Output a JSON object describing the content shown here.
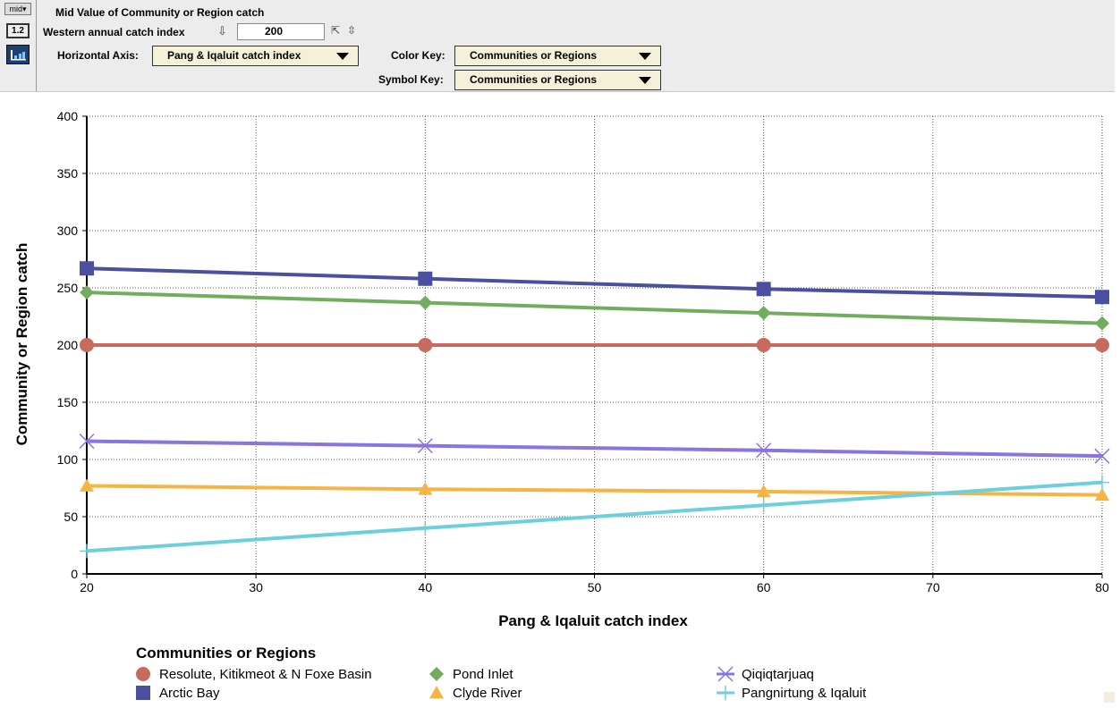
{
  "toolbar": {
    "mid_label": "mid",
    "num_label": "1.2",
    "title": "Mid Value of Community or Region catch",
    "slider_label": "Western annual catch index",
    "slider_value": "200",
    "horizontal_axis_label": "Horizontal Axis:",
    "horizontal_axis_value": "Pang & Iqaluit catch index",
    "color_key_label": "Color Key:",
    "color_key_value": "Communities or Regions",
    "symbol_key_label": "Symbol Key:",
    "symbol_key_value": "Communities or Regions"
  },
  "chart_data": {
    "type": "line",
    "xlabel": "Pang & Iqaluit catch index",
    "ylabel": "Community or Region catch",
    "xlim": [
      20,
      80
    ],
    "ylim": [
      0,
      400
    ],
    "x_ticks": [
      20,
      30,
      40,
      50,
      60,
      70,
      80
    ],
    "y_ticks": [
      0,
      50,
      100,
      150,
      200,
      250,
      300,
      350,
      400
    ],
    "grid": true,
    "legend_title": "Communities or Regions",
    "legend_position": "bottom",
    "series": [
      {
        "name": "Resolute, Kitikmeot & N Foxe Basin",
        "color": "#c96a5e",
        "marker": "circle",
        "x": [
          20,
          40,
          60,
          80
        ],
        "y": [
          200,
          200,
          200,
          200
        ]
      },
      {
        "name": "Arctic Bay",
        "color": "#4a4fa0",
        "marker": "square",
        "x": [
          20,
          40,
          60,
          80
        ],
        "y": [
          267,
          258,
          249,
          242
        ]
      },
      {
        "name": "Pond Inlet",
        "color": "#72ad5f",
        "marker": "diamond",
        "x": [
          20,
          40,
          60,
          80
        ],
        "y": [
          246,
          237,
          228,
          219
        ]
      },
      {
        "name": "Clyde River",
        "color": "#f5b443",
        "marker": "triangle",
        "x": [
          20,
          40,
          60,
          80
        ],
        "y": [
          77,
          74,
          72,
          69
        ]
      },
      {
        "name": "Qiqiqtarjuaq",
        "color": "#8b73e0",
        "marker": "x",
        "x": [
          20,
          40,
          60,
          80
        ],
        "y": [
          116,
          112,
          108,
          103
        ]
      },
      {
        "name": "Pangnirtung & Iqaluit",
        "color": "#6ccfdc",
        "marker": "plus",
        "x": [
          20,
          40,
          60,
          80
        ],
        "y": [
          20,
          40,
          60,
          80
        ]
      }
    ]
  }
}
